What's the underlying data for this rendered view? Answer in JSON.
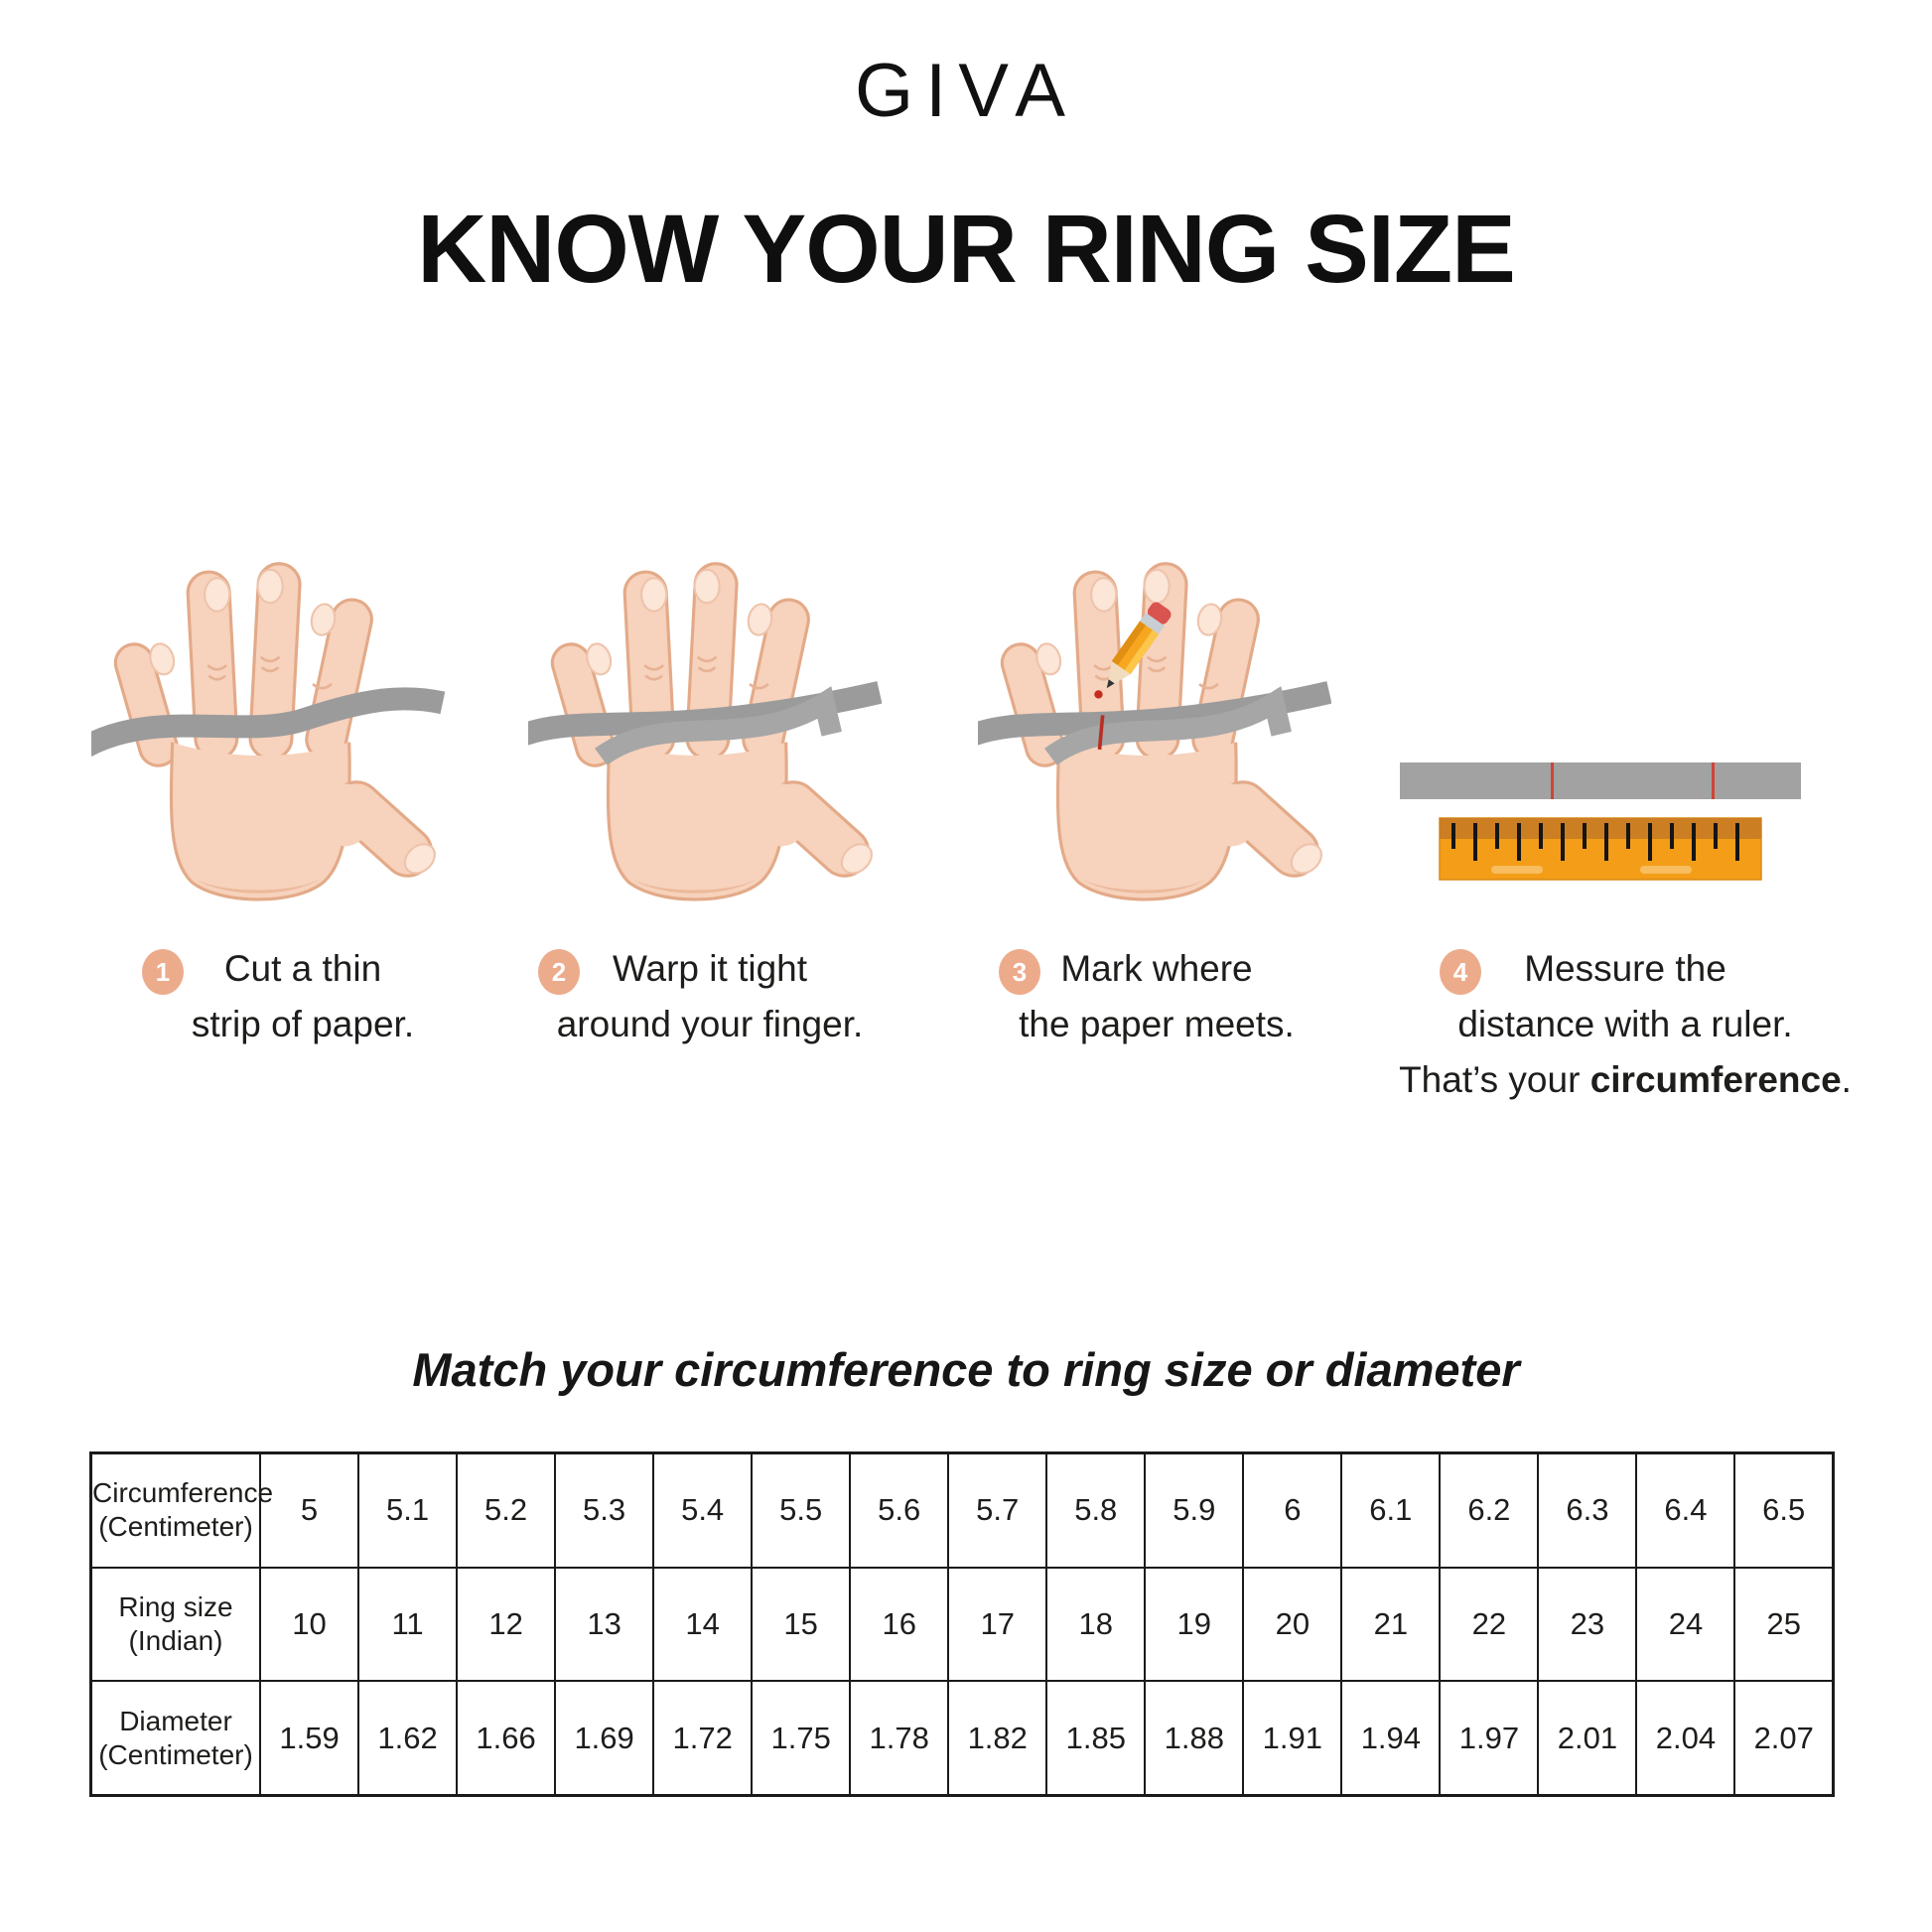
{
  "brand": "GIVA",
  "title": "KNOW YOUR RING SIZE",
  "steps": [
    {
      "number": "1",
      "line1": "Cut a thin",
      "line2": "strip of paper."
    },
    {
      "number": "2",
      "line1": "Warp it tight",
      "line2": "around your finger."
    },
    {
      "number": "3",
      "line1": "Mark where",
      "line2": "the paper meets."
    },
    {
      "number": "4",
      "line1": "Messure the",
      "line2": "distance with a ruler.",
      "line3_prefix": "That’s your ",
      "line3_bold": "circumference",
      "line3_suffix": "."
    }
  ],
  "match_heading": "Match your circumference to ring size or diameter",
  "size_table": {
    "rows": [
      {
        "label_line1": "Circumference",
        "label_line2": "(Centimeter)",
        "values": [
          "5",
          "5.1",
          "5.2",
          "5.3",
          "5.4",
          "5.5",
          "5.6",
          "5.7",
          "5.8",
          "5.9",
          "6",
          "6.1",
          "6.2",
          "6.3",
          "6.4",
          "6.5"
        ]
      },
      {
        "label_line1": "Ring size",
        "label_line2": "(Indian)",
        "values": [
          "10",
          "11",
          "12",
          "13",
          "14",
          "15",
          "16",
          "17",
          "18",
          "19",
          "20",
          "21",
          "22",
          "23",
          "24",
          "25"
        ]
      },
      {
        "label_line1": "Diameter",
        "label_line2": "(Centimeter)",
        "values": [
          "1.59",
          "1.62",
          "1.66",
          "1.69",
          "1.72",
          "1.75",
          "1.78",
          "1.82",
          "1.85",
          "1.88",
          "1.91",
          "1.94",
          "1.97",
          "2.01",
          "2.04",
          "2.07"
        ]
      }
    ]
  },
  "icons": {
    "step1": "hand-with-paper-strip-icon",
    "step2": "hand-strip-wrapped-icon",
    "step3": "hand-pencil-mark-icon",
    "step4": "marked-strip-and-ruler-icon"
  },
  "colors": {
    "skin": "#f7d2bc",
    "skin_outline": "#e3aa88",
    "strip_gray": "#9b9b9b",
    "step_badge": "#ecab8b",
    "ruler_orange": "#f39d18",
    "ruler_band": "#cc7e22",
    "mark_red": "#c64236",
    "text": "#1d1d1b"
  }
}
